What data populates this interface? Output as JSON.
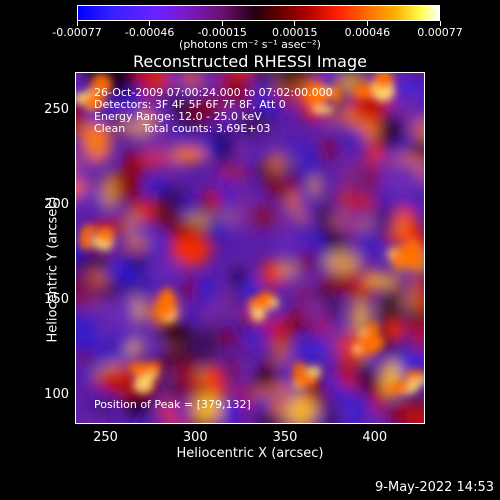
{
  "colorbar": {
    "tick_labels": [
      "-0.00077",
      "-0.00046",
      "-0.00015",
      "0.00015",
      "0.00046",
      "0.00077"
    ],
    "units": "(photons cm⁻² s⁻¹ asec⁻²)"
  },
  "title": "Reconstructed RHESSI Image",
  "annotations": {
    "time": "26-Oct-2009 07:00:24.000 to 07:02:00.000",
    "detectors": "Detectors: 3F 4F 5F 6F 7F 8F, Att 0",
    "energy": "Energy Range: 12.0 - 25.0 keV",
    "clean": "Clean     Total counts: 3.69E+03",
    "peak": "Position of Peak = [379,132]"
  },
  "axes": {
    "x_label": "Heliocentric X (arcsec)",
    "y_label": "Heliocentric Y (arcsec)",
    "x_ticks": [
      "250",
      "300",
      "350",
      "400"
    ],
    "y_ticks": [
      "100",
      "150",
      "200",
      "250"
    ],
    "x_range": [
      233,
      428
    ],
    "y_range": [
      85,
      270
    ]
  },
  "datestamp": "9-May-2022 14:53"
}
